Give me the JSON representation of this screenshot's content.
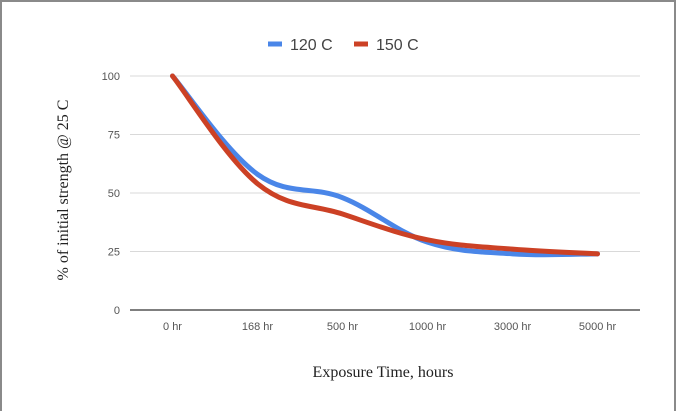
{
  "chart_data": {
    "type": "line",
    "title": "",
    "categories": [
      "0 hr",
      "168 hr",
      "500 hr",
      "1000 hr",
      "3000 hr",
      "5000 hr"
    ],
    "series": [
      {
        "name": "120 C",
        "color": "#4a86e8",
        "values": [
          100,
          58,
          48,
          29,
          24,
          24
        ]
      },
      {
        "name": "150 C",
        "color": "#cc4125",
        "values": [
          100,
          54,
          41,
          30,
          26,
          24
        ]
      }
    ],
    "xlabel": "Exposure Time, hours",
    "ylabel": "% of initial strength @ 25 C",
    "ylim": [
      0,
      100
    ],
    "yticks": [
      0,
      25,
      50,
      75,
      100
    ],
    "grid": true,
    "legend_position": "top-center",
    "smooth": true
  }
}
